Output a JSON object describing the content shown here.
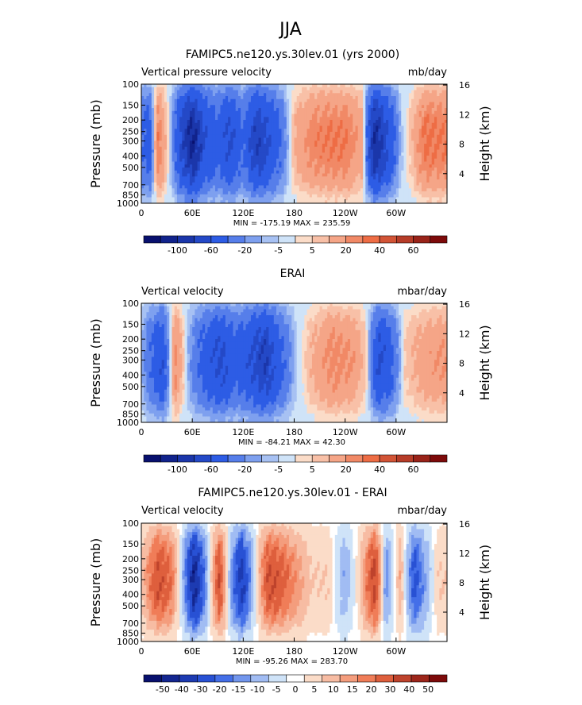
{
  "figure_title": "JJA",
  "colors": {
    "cold_strong": "#08106e",
    "cold": "#2d5ce5",
    "cold_light": "#cfe3f8",
    "warm_light": "#fbdcc8",
    "warm": "#ee6d45",
    "warm_strong": "#7d0a0a"
  },
  "chart_data": [
    {
      "type": "heatmap",
      "title": "FAMIPC5.ne120.ys.30lev.01 (yrs 2000)",
      "left_label": "Vertical pressure velocity",
      "units": "mb/day",
      "ylabel": "Pressure (mb)",
      "ylabel_right": "Height (km)",
      "x_ticks": [
        "0",
        "60E",
        "120E",
        "180",
        "120W",
        "60W"
      ],
      "y_ticks": [
        "100",
        "150",
        "200",
        "250",
        "300",
        "400",
        "500",
        "700",
        "850",
        "1000"
      ],
      "y_right_ticks": [
        "16",
        "12",
        "8",
        "4"
      ],
      "ylim": [
        1000,
        100
      ],
      "stats": "MIN = -175.19   MAX = 235.59",
      "stats_values": {
        "min": -175.19,
        "max": 235.59
      },
      "colorbar_levels": [
        -100,
        -80,
        -60,
        -40,
        -20,
        -10,
        -5,
        -2,
        2,
        5,
        10,
        20,
        30,
        40,
        50,
        60,
        80
      ],
      "colorbar_labels": [
        "-100",
        "-60",
        "-20",
        "-5",
        "5",
        "20",
        "40",
        "60"
      ],
      "features": [
        {
          "lon": 0,
          "value": -20
        },
        {
          "lon": 10,
          "value": -30
        },
        {
          "lon": 20,
          "value": 30
        },
        {
          "lon": 35,
          "value": -5
        },
        {
          "lon": 60,
          "value": -90
        },
        {
          "lon": 75,
          "value": -40
        },
        {
          "lon": 90,
          "value": -25
        },
        {
          "lon": 105,
          "value": -45
        },
        {
          "lon": 120,
          "value": -20
        },
        {
          "lon": 135,
          "value": -60
        },
        {
          "lon": 150,
          "value": -40
        },
        {
          "lon": 165,
          "value": -20
        },
        {
          "lon": 180,
          "value": 10
        },
        {
          "lon": 200,
          "value": 25
        },
        {
          "lon": 220,
          "value": 30
        },
        {
          "lon": 240,
          "value": 30
        },
        {
          "lon": 260,
          "value": 15
        },
        {
          "lon": 275,
          "value": -80
        },
        {
          "lon": 290,
          "value": -40
        },
        {
          "lon": 305,
          "value": -5
        },
        {
          "lon": 320,
          "value": 10
        },
        {
          "lon": 335,
          "value": 35
        },
        {
          "lon": 350,
          "value": 30
        }
      ]
    },
    {
      "type": "heatmap",
      "title": "ERAI",
      "left_label": "Vertical velocity",
      "units": "mbar/day",
      "ylabel": "Pressure (mb)",
      "ylabel_right": "Height (km)",
      "x_ticks": [
        "0",
        "60E",
        "120E",
        "180",
        "120W",
        "60W"
      ],
      "y_ticks": [
        "100",
        "150",
        "200",
        "250",
        "300",
        "400",
        "500",
        "700",
        "850",
        "1000"
      ],
      "y_right_ticks": [
        "16",
        "12",
        "8",
        "4"
      ],
      "ylim": [
        1000,
        100
      ],
      "stats": "MIN = -84.21   MAX = 42.30",
      "stats_values": {
        "min": -84.21,
        "max": 42.3
      },
      "colorbar_levels": [
        -100,
        -80,
        -60,
        -40,
        -20,
        -10,
        -5,
        -2,
        2,
        5,
        10,
        20,
        30,
        40,
        50,
        60,
        80
      ],
      "colorbar_labels": [
        "-100",
        "-60",
        "-20",
        "-5",
        "5",
        "20",
        "40",
        "60"
      ],
      "features": [
        {
          "lon": 0,
          "value": -5
        },
        {
          "lon": 15,
          "value": -25
        },
        {
          "lon": 25,
          "value": -40
        },
        {
          "lon": 40,
          "value": 25
        },
        {
          "lon": 55,
          "value": -5
        },
        {
          "lon": 75,
          "value": -30
        },
        {
          "lon": 95,
          "value": -45
        },
        {
          "lon": 110,
          "value": -25
        },
        {
          "lon": 130,
          "value": -40
        },
        {
          "lon": 145,
          "value": -60
        },
        {
          "lon": 160,
          "value": -30
        },
        {
          "lon": 180,
          "value": -5
        },
        {
          "lon": 200,
          "value": 10
        },
        {
          "lon": 225,
          "value": 25
        },
        {
          "lon": 250,
          "value": 20
        },
        {
          "lon": 265,
          "value": 5
        },
        {
          "lon": 280,
          "value": -45
        },
        {
          "lon": 295,
          "value": -25
        },
        {
          "lon": 310,
          "value": 5
        },
        {
          "lon": 330,
          "value": 15
        },
        {
          "lon": 350,
          "value": 20
        }
      ]
    },
    {
      "type": "heatmap",
      "title": "FAMIPC5.ne120.ys.30lev.01 - ERAI",
      "left_label": "Vertical velocity",
      "units": "mbar/day",
      "ylabel": "Pressure (mb)",
      "ylabel_right": "Height (km)",
      "x_ticks": [
        "0",
        "60E",
        "120E",
        "180",
        "120W",
        "60W"
      ],
      "y_ticks": [
        "100",
        "150",
        "200",
        "250",
        "300",
        "400",
        "500",
        "700",
        "850",
        "1000"
      ],
      "y_right_ticks": [
        "16",
        "12",
        "8",
        "4"
      ],
      "ylim": [
        1000,
        100
      ],
      "stats": "MIN = -95.26   MAX = 283.70",
      "stats_values": {
        "min": -95.26,
        "max": 283.7
      },
      "colorbar_levels": [
        -50,
        -40,
        -30,
        -20,
        -15,
        -10,
        -5,
        -1,
        1,
        5,
        10,
        15,
        20,
        30,
        40,
        50
      ],
      "colorbar_labels": [
        "-50",
        "-40",
        "-30",
        "-20",
        "-15",
        "-10",
        "-5",
        "0",
        "5",
        "10",
        "15",
        "20",
        "30",
        "40",
        "50"
      ],
      "features": [
        {
          "lon": 0,
          "value": 5
        },
        {
          "lon": 20,
          "value": 30
        },
        {
          "lon": 35,
          "value": 20
        },
        {
          "lon": 50,
          "value": -10
        },
        {
          "lon": 62,
          "value": -45
        },
        {
          "lon": 75,
          "value": -15
        },
        {
          "lon": 92,
          "value": 30
        },
        {
          "lon": 105,
          "value": -10
        },
        {
          "lon": 118,
          "value": -35
        },
        {
          "lon": 130,
          "value": -10
        },
        {
          "lon": 150,
          "value": 30
        },
        {
          "lon": 165,
          "value": 25
        },
        {
          "lon": 180,
          "value": 15
        },
        {
          "lon": 200,
          "value": 5
        },
        {
          "lon": 220,
          "value": 5
        },
        {
          "lon": 240,
          "value": -10
        },
        {
          "lon": 258,
          "value": 5
        },
        {
          "lon": 275,
          "value": 35
        },
        {
          "lon": 288,
          "value": -15
        },
        {
          "lon": 305,
          "value": 10
        },
        {
          "lon": 322,
          "value": -25
        },
        {
          "lon": 335,
          "value": -10
        },
        {
          "lon": 350,
          "value": 5
        }
      ]
    }
  ]
}
